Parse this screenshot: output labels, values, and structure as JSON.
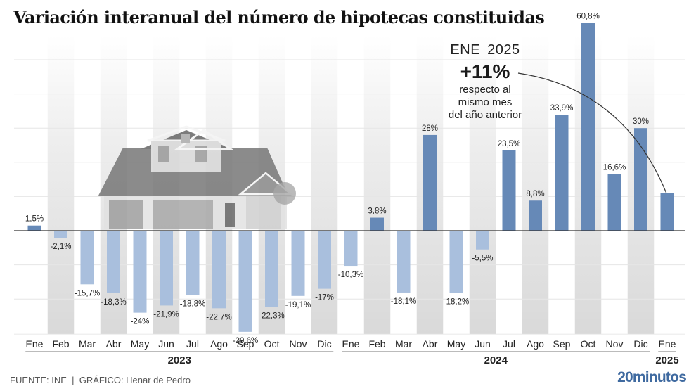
{
  "title": "Variación interanual del número de hipotecas constituidas",
  "source": "FUENTE: INE  |  GRÁFICO: Henar de Pedro",
  "brand": "20minutos",
  "annotation": {
    "date": "ENE  2025",
    "value": "+11%",
    "text_lines": [
      "respecto al",
      "mismo mes",
      "del año anterior"
    ]
  },
  "colors": {
    "positive": "#6689b7",
    "negative": "#a9bfdd",
    "band": "#dcdcdc",
    "grid": "#e6e6e6",
    "zero_line": "#333333",
    "brand": "#3f6aa0"
  },
  "chart_data": {
    "type": "bar",
    "title": "Variación interanual del número de hipotecas constituidas",
    "xlabel": "",
    "ylabel": "",
    "unit": "%",
    "ylim": [
      -30,
      60.8
    ],
    "grid": true,
    "gridlines": [
      -30,
      -20,
      -10,
      10,
      20,
      30,
      40,
      50
    ],
    "categories": [
      "Ene",
      "Feb",
      "Mar",
      "Abr",
      "May",
      "Jun",
      "Jul",
      "Ago",
      "Sep",
      "Oct",
      "Nov",
      "Dic",
      "Ene",
      "Feb",
      "Mar",
      "Abr",
      "May",
      "Jun",
      "Jul",
      "Ago",
      "Sep",
      "Oct",
      "Nov",
      "Dic",
      "Ene"
    ],
    "years": [
      {
        "label": "2023",
        "start": 0,
        "end": 11
      },
      {
        "label": "2024",
        "start": 12,
        "end": 23
      },
      {
        "label": "2025",
        "start": 24,
        "end": 24
      }
    ],
    "values": [
      1.5,
      -2.1,
      -15.7,
      -18.3,
      -24,
      -21.9,
      -18.8,
      -22.7,
      -29.6,
      -22.3,
      -19.1,
      -17,
      -10.3,
      3.8,
      -18.1,
      28,
      -18.2,
      -5.5,
      23.5,
      8.8,
      33.9,
      60.8,
      16.6,
      30,
      11
    ],
    "labels": [
      "1,5%",
      "-2,1%",
      "-15,7%",
      "-18,3%",
      "-24%",
      "-21,9%",
      "-18,8%",
      "-22,7%",
      "-29,6%",
      "-22,3%",
      "-19,1%",
      "-17%",
      "-10,3%",
      "3,8%",
      "-18,1%",
      "28%",
      "-18,2%",
      "-5,5%",
      "23,5%",
      "8,8%",
      "33,9%",
      "60,8%",
      "16,6%",
      "30%",
      ""
    ]
  }
}
